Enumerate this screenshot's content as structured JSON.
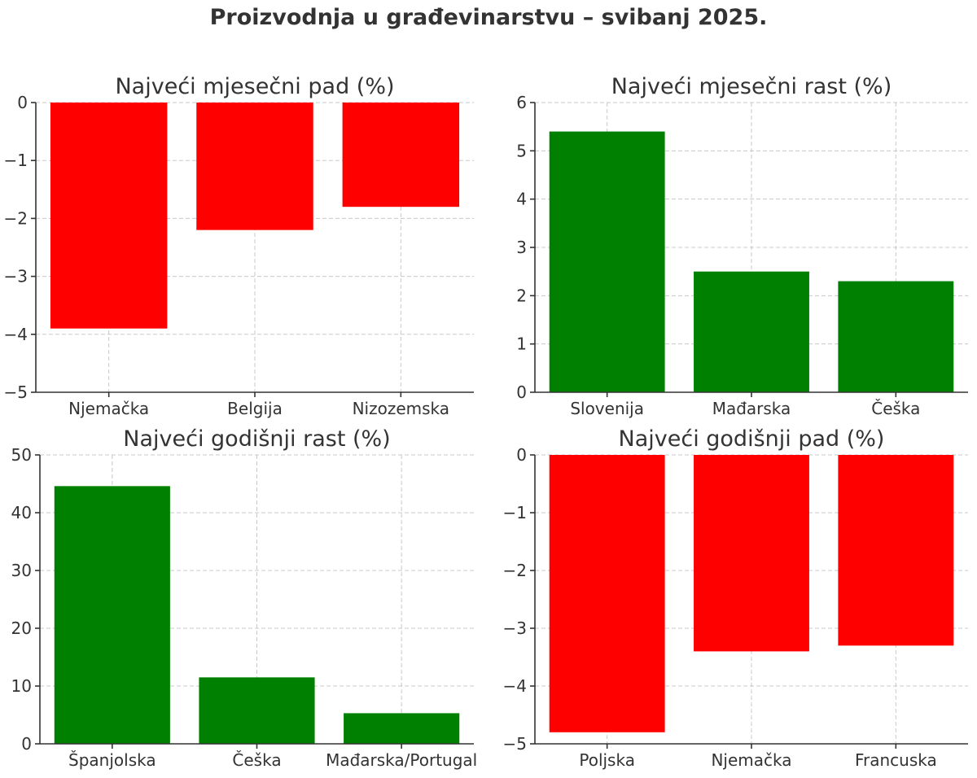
{
  "title": "Proizvodnja u građevinarstvu – svibanj 2025.",
  "colors": {
    "positive": "#008000",
    "negative": "#ff0000",
    "text": "#333333",
    "grid": "#c8c8c8"
  },
  "chart_data": [
    {
      "type": "bar",
      "title": "Najveći mjesečni pad (%)",
      "categories": [
        "Njemačka",
        "Belgija",
        "Nizozemska"
      ],
      "values": [
        -3.9,
        -2.2,
        -1.8
      ],
      "ylim": [
        -5,
        0
      ],
      "yticks": [
        0,
        -1,
        -2,
        -3,
        -4,
        -5
      ],
      "color": "#ff0000",
      "grid": true
    },
    {
      "type": "bar",
      "title": "Najveći mjesečni rast (%)",
      "categories": [
        "Slovenija",
        "Mađarska",
        "Češka"
      ],
      "values": [
        5.4,
        2.5,
        2.3
      ],
      "ylim": [
        0,
        6
      ],
      "yticks": [
        0,
        1,
        2,
        3,
        4,
        5,
        6
      ],
      "color": "#008000",
      "grid": true
    },
    {
      "type": "bar",
      "title": "Najveći godišnji rast (%)",
      "categories": [
        "Španjolska",
        "Češka",
        "Mađarska/Portugal"
      ],
      "values": [
        44.6,
        11.5,
        5.3
      ],
      "ylim": [
        0,
        50
      ],
      "yticks": [
        0,
        10,
        20,
        30,
        40,
        50
      ],
      "color": "#008000",
      "grid": true
    },
    {
      "type": "bar",
      "title": "Najveći godišnji pad (%)",
      "categories": [
        "Poljska",
        "Njemačka",
        "Francuska"
      ],
      "values": [
        -4.8,
        -3.4,
        -3.3
      ],
      "ylim": [
        -5,
        0
      ],
      "yticks": [
        0,
        -1,
        -2,
        -3,
        -4,
        -5
      ],
      "color": "#ff0000",
      "grid": true
    }
  ]
}
